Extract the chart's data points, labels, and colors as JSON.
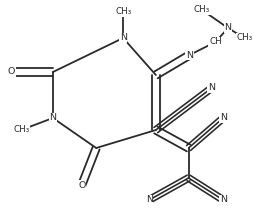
{
  "bg_color": "#ffffff",
  "line_color": "#2a2a2a",
  "font_size": 6.8,
  "line_width": 1.3,
  "figsize": [
    2.54,
    2.11
  ],
  "dpi": 100,
  "xlim": [
    0,
    254
  ],
  "ylim": [
    0,
    211
  ]
}
